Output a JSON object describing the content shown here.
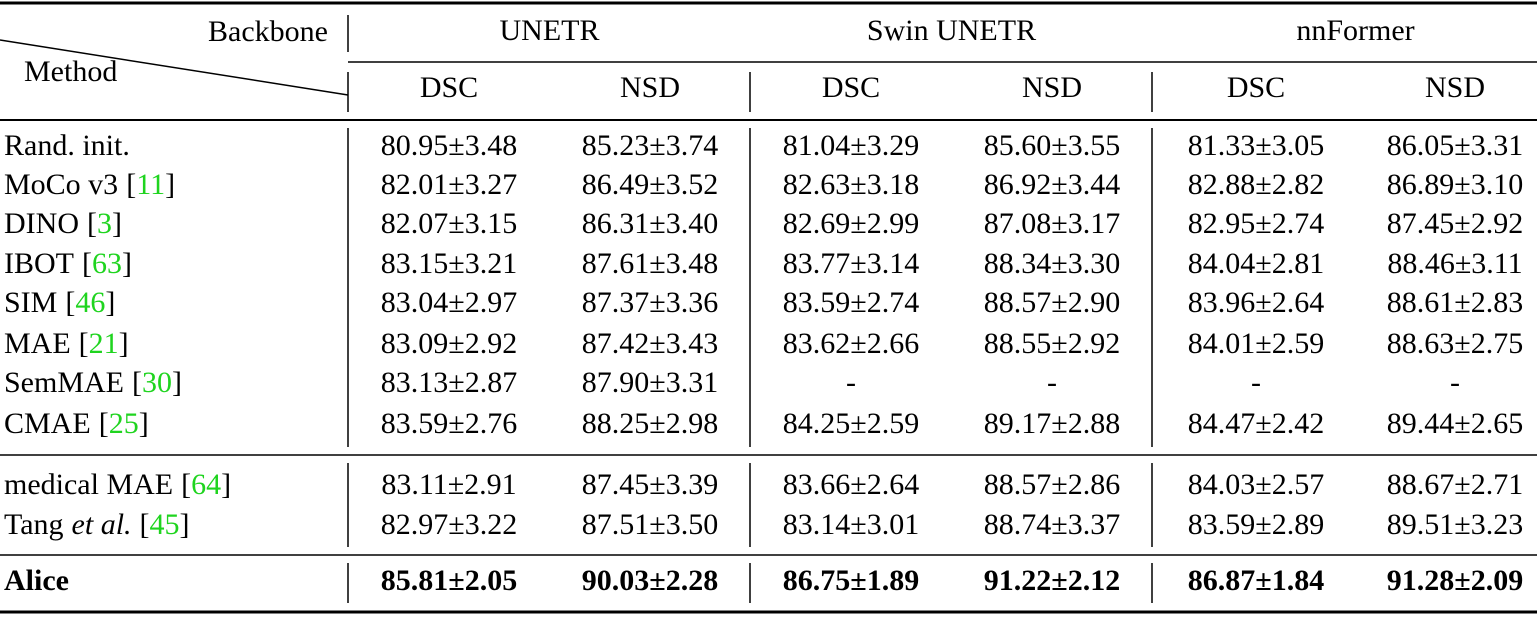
{
  "header": {
    "backbone": "Backbone",
    "method": "Method",
    "groups": [
      {
        "name": "UNETR",
        "columns": [
          "DSC",
          "NSD"
        ]
      },
      {
        "name": "Swin UNETR",
        "columns": [
          "DSC",
          "NSD"
        ]
      },
      {
        "name": "nnFormer",
        "columns": [
          "DSC",
          "NSD"
        ]
      }
    ]
  },
  "citation_brackets": [
    "[",
    "]"
  ],
  "row_groups": [
    {
      "rows": [
        {
          "method": {
            "name": "Rand. init."
          },
          "cells": [
            "80.95±3.48",
            "85.23±3.74",
            "81.04±3.29",
            "85.60±3.55",
            "81.33±3.05",
            "86.05±3.31"
          ]
        },
        {
          "method": {
            "name": "MoCo v3",
            "ref": "11"
          },
          "cells": [
            "82.01±3.27",
            "86.49±3.52",
            "82.63±3.18",
            "86.92±3.44",
            "82.88±2.82",
            "86.89±3.10"
          ]
        },
        {
          "method": {
            "name": "DINO",
            "ref": "3"
          },
          "cells": [
            "82.07±3.15",
            "86.31±3.40",
            "82.69±2.99",
            "87.08±3.17",
            "82.95±2.74",
            "87.45±2.92"
          ]
        },
        {
          "method": {
            "name": "IBOT",
            "ref": "63"
          },
          "cells": [
            "83.15±3.21",
            "87.61±3.48",
            "83.77±3.14",
            "88.34±3.30",
            "84.04±2.81",
            "88.46±3.11"
          ]
        },
        {
          "method": {
            "name": "SIM",
            "ref": "46"
          },
          "cells": [
            "83.04±2.97",
            "87.37±3.36",
            "83.59±2.74",
            "88.57±2.90",
            "83.96±2.64",
            "88.61±2.83"
          ]
        },
        {
          "method": {
            "name": "MAE",
            "ref": "21"
          },
          "cells": [
            "83.09±2.92",
            "87.42±3.43",
            "83.62±2.66",
            "88.55±2.92",
            "84.01±2.59",
            "88.63±2.75"
          ]
        },
        {
          "method": {
            "name": "SemMAE",
            "ref": "30"
          },
          "cells": [
            "83.13±2.87",
            "87.90±3.31",
            "-",
            "-",
            "-",
            "-"
          ]
        },
        {
          "method": {
            "name": "CMAE",
            "ref": "25"
          },
          "cells": [
            "83.59±2.76",
            "88.25±2.98",
            "84.25±2.59",
            "89.17±2.88",
            "84.47±2.42",
            "89.44±2.65"
          ]
        }
      ]
    },
    {
      "rows": [
        {
          "method": {
            "name": "medical MAE",
            "ref": "64"
          },
          "cells": [
            "83.11±2.91",
            "87.45±3.39",
            "83.66±2.64",
            "88.57±2.86",
            "84.03±2.57",
            "88.67±2.71"
          ]
        },
        {
          "method": {
            "name": "Tang",
            "name_em": "et al.",
            "ref": "45"
          },
          "cells": [
            "82.97±3.22",
            "87.51±3.50",
            "83.14±3.01",
            "88.74±3.37",
            "83.59±2.89",
            "89.51±3.23"
          ]
        }
      ]
    },
    {
      "bold": true,
      "rows": [
        {
          "method": {
            "name": "Alice"
          },
          "cells": [
            "85.81±2.05",
            "90.03±2.28",
            "86.75±1.89",
            "91.22±2.12",
            "86.87±1.84",
            "91.28±2.09"
          ]
        }
      ]
    }
  ]
}
